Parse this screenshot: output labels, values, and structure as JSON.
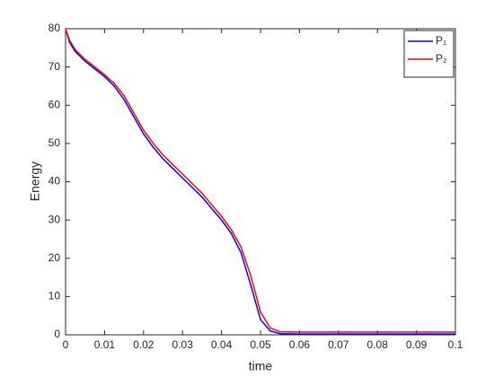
{
  "chart_data": {
    "type": "line",
    "x_label": "time",
    "y_label": "Energy",
    "x": [
      0,
      0.001,
      0.0025,
      0.005,
      0.0075,
      0.01,
      0.0125,
      0.015,
      0.0175,
      0.02,
      0.0225,
      0.025,
      0.0275,
      0.03,
      0.0325,
      0.035,
      0.0375,
      0.04,
      0.0425,
      0.045,
      0.0475,
      0.05,
      0.0525,
      0.055,
      0.06,
      0.1
    ],
    "series": [
      {
        "name": "P₁",
        "color": "#0000ff",
        "values": [
          80,
          76.5,
          74,
          71.5,
          69.5,
          67.5,
          65,
          61.5,
          57,
          52.5,
          49,
          46,
          43.5,
          41,
          38.5,
          36,
          33,
          30,
          26.5,
          21.5,
          13,
          4,
          1,
          0.3,
          0.2,
          0.2
        ]
      },
      {
        "name": "P₂",
        "color": "#ff0000",
        "values": [
          80,
          77,
          74.5,
          72,
          70,
          68,
          65.7,
          62.5,
          58,
          53.5,
          50,
          47,
          44.5,
          42,
          39.5,
          37,
          34,
          31,
          27.5,
          23,
          15.5,
          6,
          1.8,
          0.8,
          0.7,
          0.7
        ]
      }
    ],
    "xlim": [
      0,
      0.1
    ],
    "xticks": [
      0,
      0.01,
      0.02,
      0.03,
      0.04,
      0.05,
      0.06,
      0.07,
      0.08,
      0.09,
      0.1
    ],
    "ylim": [
      0,
      80
    ],
    "yticks": [
      0,
      10,
      20,
      30,
      40,
      50,
      60,
      70,
      80
    ],
    "grid": false,
    "legend": "top-right"
  }
}
